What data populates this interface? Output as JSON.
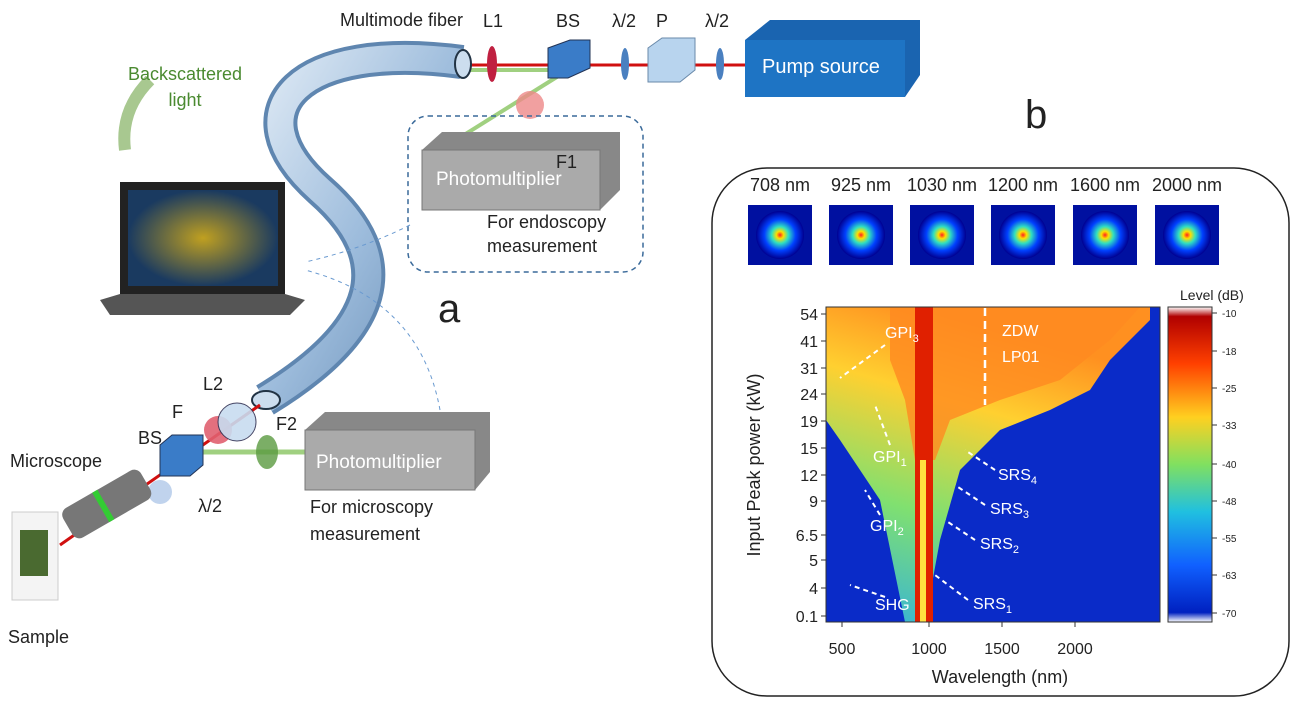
{
  "panel_a": {
    "label": "a",
    "fiber": "Multimode fiber",
    "l1": "L1",
    "bs_top": "BS",
    "hwp1": "λ/2",
    "polarizer": "P",
    "hwp2": "λ/2",
    "pump": "Pump source",
    "backscatter": [
      "Backscattered",
      "light"
    ],
    "f1": "F1",
    "pmt_top": "Photomultiplier",
    "pmt_top_caption": [
      "For endoscopy",
      "measurement"
    ],
    "l2": "L2",
    "f": "F",
    "bs_bottom": "BS",
    "microscope": "Microscope",
    "hwp3": "λ/2",
    "f2": "F2",
    "pmt_bottom": "Photomultiplier",
    "pmt_bottom_caption": [
      "For microscopy",
      "measurement"
    ],
    "sample": "Sample"
  },
  "panel_b": {
    "label": "b",
    "beam_wavelengths": [
      "708 nm",
      "925 nm",
      "1030 nm",
      "1200 nm",
      "1600 nm",
      "2000 nm"
    ],
    "y_axis_label": "Input Peak power (kW)",
    "y_ticks": [
      "54",
      "41",
      "31",
      "24",
      "19",
      "15",
      "12",
      "9",
      "6.5",
      "5",
      "4",
      "0.1"
    ],
    "x_axis_label": "Wavelength (nm)",
    "x_ticks": [
      "500",
      "1000",
      "1500",
      "2000"
    ],
    "colorbar_label": "Level (dB)",
    "colorbar_ticks": [
      "-10",
      "-18",
      "-25",
      "-33",
      "-40",
      "-48",
      "-55",
      "-63",
      "-70"
    ],
    "annotations": {
      "gpi3": {
        "text": "GPI",
        "sub": "3"
      },
      "gpi1": {
        "text": "GPI",
        "sub": "1"
      },
      "gpi2": {
        "text": "GPI",
        "sub": "2"
      },
      "shg": "SHG",
      "srs4": {
        "text": "SRS",
        "sub": "4"
      },
      "srs3": {
        "text": "SRS",
        "sub": "3"
      },
      "srs2": {
        "text": "SRS",
        "sub": "2"
      },
      "srs1": {
        "text": "SRS",
        "sub": "1"
      },
      "zdw": [
        "ZDW",
        "LP01"
      ]
    }
  }
}
